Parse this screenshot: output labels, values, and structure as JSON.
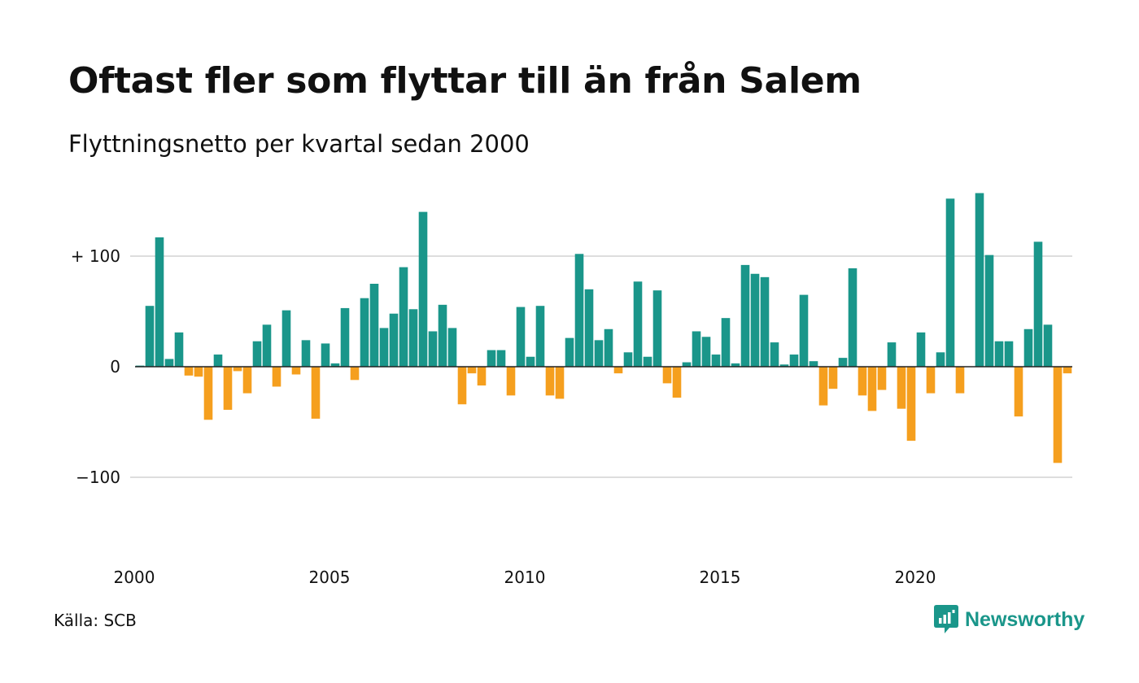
{
  "chart_data": {
    "type": "bar",
    "title": "Oftast fler som flyttar till än från Salem",
    "subtitle": "Flyttningsnetto per kvartal sedan 2000",
    "x_start": 2000,
    "periods_per_year": 4,
    "x_ticks": [
      {
        "value": 2000,
        "label": "2000"
      },
      {
        "value": 2005,
        "label": "2005"
      },
      {
        "value": 2010,
        "label": "2010"
      },
      {
        "value": 2015,
        "label": "2015"
      },
      {
        "value": 2020,
        "label": "2020"
      }
    ],
    "y_ticks": [
      {
        "value": 100,
        "label": "+ 100"
      },
      {
        "value": 0,
        "label": "0"
      },
      {
        "value": -100,
        "label": "−100"
      }
    ],
    "ylim": [
      -172,
      160
    ],
    "grid": true,
    "positive_color": "#1a968a",
    "negative_color": "#f59f1e",
    "values": [
      1,
      55,
      117,
      7,
      31,
      -8,
      -9,
      -48,
      11,
      -39,
      -4,
      -24,
      23,
      38,
      -18,
      51,
      -7,
      24,
      -47,
      21,
      3,
      53,
      -12,
      62,
      75,
      35,
      48,
      90,
      52,
      140,
      32,
      56,
      35,
      -34,
      -6,
      -17,
      15,
      15,
      -26,
      54,
      9,
      55,
      -26,
      -29,
      26,
      102,
      70,
      24,
      34,
      -6,
      13,
      77,
      9,
      69,
      -15,
      -28,
      4,
      32,
      27,
      11,
      44,
      3,
      92,
      84,
      81,
      22,
      2,
      11,
      65,
      5,
      -35,
      -20,
      8,
      89,
      -26,
      -40,
      -21,
      22,
      -38,
      -67,
      31,
      -24,
      13,
      152,
      -24,
      0,
      157,
      101,
      23,
      23,
      -45,
      34,
      113,
      38,
      -87,
      -6
    ]
  },
  "footer": {
    "source": "Källa: SCB",
    "brand": "Newsworthy"
  },
  "colors": {
    "brand": "#1a968a",
    "grid": "#dddddd",
    "axis_text": "#111111"
  },
  "icons": {
    "brand_logo": "newsworthy-logo-icon"
  }
}
